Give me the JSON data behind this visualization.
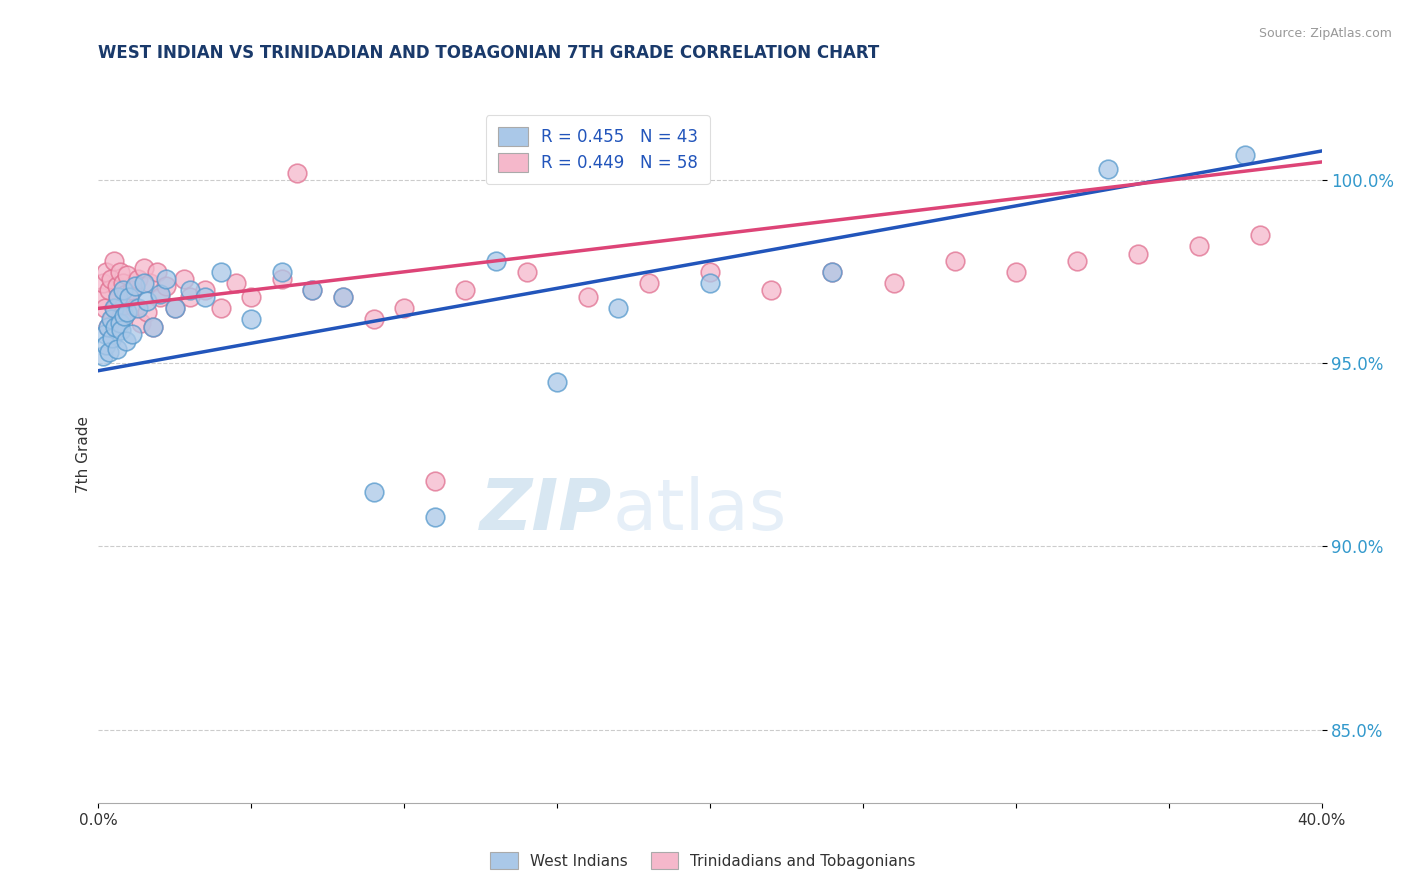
{
  "title": "WEST INDIAN VS TRINIDADIAN AND TOBAGONIAN 7TH GRADE CORRELATION CHART",
  "source": "Source: ZipAtlas.com",
  "ylabel": "7th Grade",
  "xlim": [
    0.0,
    40.0
  ],
  "ylim": [
    83.0,
    102.0
  ],
  "yticks": [
    85.0,
    90.0,
    95.0,
    100.0
  ],
  "ytick_labels": [
    "85.0%",
    "90.0%",
    "95.0%",
    "100.0%"
  ],
  "xtick_positions": [
    0.0,
    5.0,
    10.0,
    15.0,
    20.0,
    25.0,
    30.0,
    35.0,
    40.0
  ],
  "xtick_labels": [
    "0.0%",
    "",
    "",
    "",
    "",
    "",
    "",
    "",
    "40.0%"
  ],
  "legend_r_blue": "R = 0.455",
  "legend_n_blue": "N = 43",
  "legend_r_pink": "R = 0.449",
  "legend_n_pink": "N = 58",
  "blue_fill_color": "#aac8e8",
  "pink_fill_color": "#f5b8cb",
  "blue_edge_color": "#5599cc",
  "pink_edge_color": "#e07090",
  "blue_line_color": "#2255bb",
  "pink_line_color": "#dd4477",
  "blue_scatter_x": [
    0.15,
    0.2,
    0.25,
    0.3,
    0.35,
    0.4,
    0.45,
    0.5,
    0.55,
    0.6,
    0.65,
    0.7,
    0.75,
    0.8,
    0.85,
    0.9,
    0.95,
    1.0,
    1.1,
    1.2,
    1.3,
    1.5,
    1.6,
    1.8,
    2.0,
    2.2,
    2.5,
    3.0,
    3.5,
    4.0,
    5.0,
    6.0,
    7.0,
    8.0,
    9.0,
    11.0,
    13.0,
    15.0,
    17.0,
    20.0,
    24.0,
    33.0,
    37.5
  ],
  "blue_scatter_y": [
    95.2,
    95.8,
    95.5,
    96.0,
    95.3,
    96.2,
    95.7,
    96.5,
    96.0,
    95.4,
    96.8,
    96.1,
    95.9,
    97.0,
    96.3,
    95.6,
    96.4,
    96.8,
    95.8,
    97.1,
    96.5,
    97.2,
    96.7,
    96.0,
    96.9,
    97.3,
    96.5,
    97.0,
    96.8,
    97.5,
    96.2,
    97.5,
    97.0,
    96.8,
    91.5,
    90.8,
    97.8,
    94.5,
    96.5,
    97.2,
    97.5,
    100.3,
    100.7
  ],
  "pink_scatter_x": [
    0.1,
    0.15,
    0.2,
    0.25,
    0.3,
    0.35,
    0.4,
    0.45,
    0.5,
    0.55,
    0.6,
    0.65,
    0.7,
    0.75,
    0.8,
    0.85,
    0.9,
    0.95,
    1.0,
    1.1,
    1.2,
    1.3,
    1.4,
    1.5,
    1.6,
    1.7,
    1.8,
    1.9,
    2.0,
    2.2,
    2.5,
    2.8,
    3.0,
    3.5,
    4.0,
    4.5,
    5.0,
    6.0,
    7.0,
    8.0,
    9.0,
    10.0,
    11.0,
    12.0,
    14.0,
    16.0,
    18.0,
    20.0,
    22.0,
    24.0,
    26.0,
    28.0,
    30.0,
    32.0,
    34.0,
    36.0,
    38.0,
    6.5
  ],
  "pink_scatter_y": [
    96.8,
    97.2,
    96.5,
    97.5,
    96.0,
    97.0,
    97.3,
    96.2,
    97.8,
    96.5,
    97.1,
    96.8,
    97.5,
    96.3,
    97.2,
    96.6,
    96.9,
    97.4,
    96.8,
    97.0,
    96.5,
    97.3,
    96.1,
    97.6,
    96.4,
    97.2,
    96.0,
    97.5,
    96.8,
    97.1,
    96.5,
    97.3,
    96.8,
    97.0,
    96.5,
    97.2,
    96.8,
    97.3,
    97.0,
    96.8,
    96.2,
    96.5,
    91.8,
    97.0,
    97.5,
    96.8,
    97.2,
    97.5,
    97.0,
    97.5,
    97.2,
    97.8,
    97.5,
    97.8,
    98.0,
    98.2,
    98.5,
    100.2
  ],
  "blue_line_x0": 0.0,
  "blue_line_y0": 94.8,
  "blue_line_x1": 40.0,
  "blue_line_y1": 100.8,
  "pink_line_x0": 0.0,
  "pink_line_y0": 96.5,
  "pink_line_x1": 40.0,
  "pink_line_y1": 100.5,
  "watermark_zip": "ZIP",
  "watermark_atlas": "atlas",
  "background_color": "#ffffff",
  "grid_color": "#cccccc",
  "title_color": "#1a3a6b",
  "source_color": "#999999",
  "ylabel_color": "#333333",
  "ytick_color": "#3399cc",
  "xtick_color": "#333333"
}
